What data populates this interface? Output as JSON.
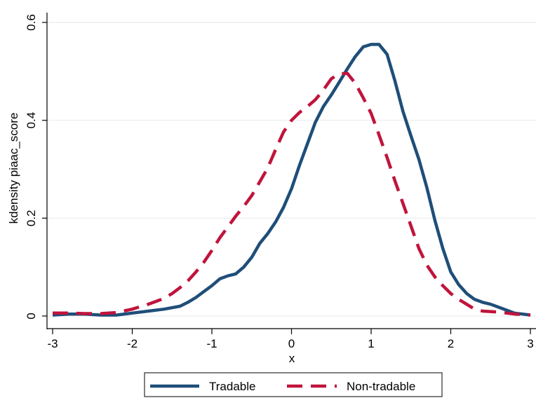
{
  "chart_data": {
    "type": "line",
    "title": "",
    "xlabel": "x",
    "ylabel": "kdensity piaac_score",
    "xlim": [
      -3,
      3
    ],
    "ylim": [
      0,
      0.6
    ],
    "x_ticks": [
      -3,
      -2,
      -1,
      0,
      1,
      2,
      3
    ],
    "x_tick_labels": [
      "-3",
      "-2",
      "-1",
      "0",
      "1",
      "2",
      "3"
    ],
    "y_ticks": [
      0,
      0.2,
      0.4,
      0.6
    ],
    "y_tick_labels": [
      "0",
      "0.2",
      "0.4",
      "0.6"
    ],
    "grid": "horizontal",
    "legend_position": "bottom",
    "series": [
      {
        "name": "Tradable",
        "color": "#1f4e79",
        "style": "solid",
        "points": [
          [
            -3.0,
            0.002
          ],
          [
            -2.8,
            0.004
          ],
          [
            -2.6,
            0.004
          ],
          [
            -2.4,
            0.002
          ],
          [
            -2.2,
            0.002
          ],
          [
            -2.0,
            0.006
          ],
          [
            -1.8,
            0.01
          ],
          [
            -1.6,
            0.014
          ],
          [
            -1.4,
            0.02
          ],
          [
            -1.3,
            0.028
          ],
          [
            -1.2,
            0.038
          ],
          [
            -1.1,
            0.05
          ],
          [
            -1.0,
            0.062
          ],
          [
            -0.9,
            0.076
          ],
          [
            -0.8,
            0.082
          ],
          [
            -0.7,
            0.086
          ],
          [
            -0.6,
            0.1
          ],
          [
            -0.5,
            0.12
          ],
          [
            -0.4,
            0.148
          ],
          [
            -0.3,
            0.168
          ],
          [
            -0.2,
            0.192
          ],
          [
            -0.1,
            0.222
          ],
          [
            0.0,
            0.26
          ],
          [
            0.1,
            0.308
          ],
          [
            0.2,
            0.352
          ],
          [
            0.3,
            0.396
          ],
          [
            0.4,
            0.428
          ],
          [
            0.5,
            0.452
          ],
          [
            0.6,
            0.478
          ],
          [
            0.7,
            0.505
          ],
          [
            0.8,
            0.53
          ],
          [
            0.9,
            0.55
          ],
          [
            1.0,
            0.555
          ],
          [
            1.1,
            0.555
          ],
          [
            1.2,
            0.535
          ],
          [
            1.3,
            0.48
          ],
          [
            1.4,
            0.418
          ],
          [
            1.5,
            0.368
          ],
          [
            1.6,
            0.32
          ],
          [
            1.7,
            0.262
          ],
          [
            1.8,
            0.196
          ],
          [
            1.9,
            0.138
          ],
          [
            2.0,
            0.09
          ],
          [
            2.1,
            0.064
          ],
          [
            2.2,
            0.046
          ],
          [
            2.3,
            0.034
          ],
          [
            2.4,
            0.028
          ],
          [
            2.5,
            0.024
          ],
          [
            2.6,
            0.018
          ],
          [
            2.7,
            0.012
          ],
          [
            2.8,
            0.006
          ],
          [
            2.9,
            0.004
          ],
          [
            3.0,
            0.002
          ]
        ]
      },
      {
        "name": "Non-tradable",
        "color": "#c0143c",
        "style": "dashed",
        "points": [
          [
            -3.0,
            0.006
          ],
          [
            -2.8,
            0.006
          ],
          [
            -2.6,
            0.005
          ],
          [
            -2.4,
            0.005
          ],
          [
            -2.2,
            0.007
          ],
          [
            -2.0,
            0.014
          ],
          [
            -1.8,
            0.024
          ],
          [
            -1.6,
            0.036
          ],
          [
            -1.5,
            0.046
          ],
          [
            -1.4,
            0.058
          ],
          [
            -1.3,
            0.072
          ],
          [
            -1.2,
            0.09
          ],
          [
            -1.1,
            0.11
          ],
          [
            -1.0,
            0.134
          ],
          [
            -0.9,
            0.16
          ],
          [
            -0.8,
            0.182
          ],
          [
            -0.7,
            0.204
          ],
          [
            -0.6,
            0.224
          ],
          [
            -0.5,
            0.246
          ],
          [
            -0.4,
            0.274
          ],
          [
            -0.3,
            0.302
          ],
          [
            -0.2,
            0.34
          ],
          [
            -0.1,
            0.376
          ],
          [
            0.0,
            0.4
          ],
          [
            0.1,
            0.416
          ],
          [
            0.2,
            0.428
          ],
          [
            0.3,
            0.442
          ],
          [
            0.4,
            0.462
          ],
          [
            0.5,
            0.485
          ],
          [
            0.6,
            0.495
          ],
          [
            0.7,
            0.496
          ],
          [
            0.8,
            0.476
          ],
          [
            0.9,
            0.446
          ],
          [
            1.0,
            0.414
          ],
          [
            1.1,
            0.37
          ],
          [
            1.2,
            0.324
          ],
          [
            1.3,
            0.276
          ],
          [
            1.4,
            0.23
          ],
          [
            1.5,
            0.184
          ],
          [
            1.6,
            0.138
          ],
          [
            1.7,
            0.104
          ],
          [
            1.8,
            0.08
          ],
          [
            1.9,
            0.062
          ],
          [
            2.0,
            0.046
          ],
          [
            2.1,
            0.034
          ],
          [
            2.2,
            0.024
          ],
          [
            2.3,
            0.014
          ],
          [
            2.4,
            0.01
          ],
          [
            2.6,
            0.008
          ],
          [
            2.8,
            0.004
          ],
          [
            3.0,
            0.002
          ]
        ]
      }
    ]
  }
}
